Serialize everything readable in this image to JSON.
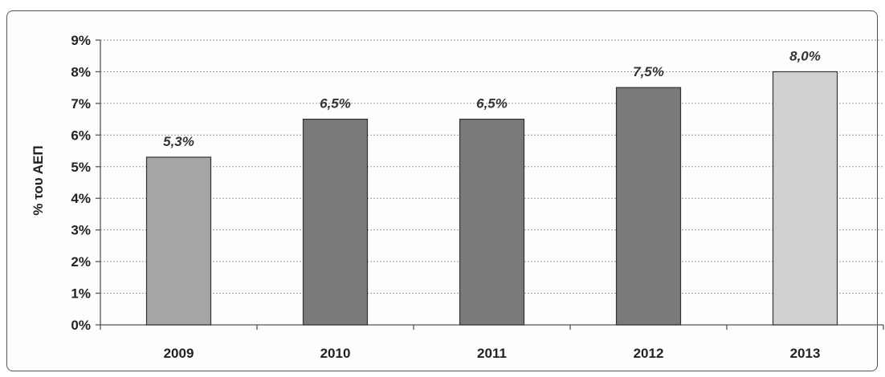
{
  "chart_data": {
    "type": "bar",
    "categories": [
      "2009",
      "2010",
      "2011",
      "2012",
      "2013"
    ],
    "values": [
      5.3,
      6.5,
      6.5,
      7.5,
      8.0
    ],
    "data_labels": [
      "5,3%",
      "6,5%",
      "6,5%",
      "7,5%",
      "8,0%"
    ],
    "bar_colors": [
      "#a6a6a6",
      "#7a7a7a",
      "#7a7a7a",
      "#7a7a7a",
      "#cfd1d3"
    ],
    "ylabel": "% του ΑΕΠ",
    "ylim": [
      0,
      9
    ],
    "yticks": [
      0,
      1,
      2,
      3,
      4,
      5,
      6,
      7,
      8,
      9
    ],
    "ytick_labels": [
      "0%",
      "1%",
      "2%",
      "3%",
      "4%",
      "5%",
      "6%",
      "7%",
      "8%",
      "9%"
    ],
    "grid": true,
    "legend": "none"
  }
}
